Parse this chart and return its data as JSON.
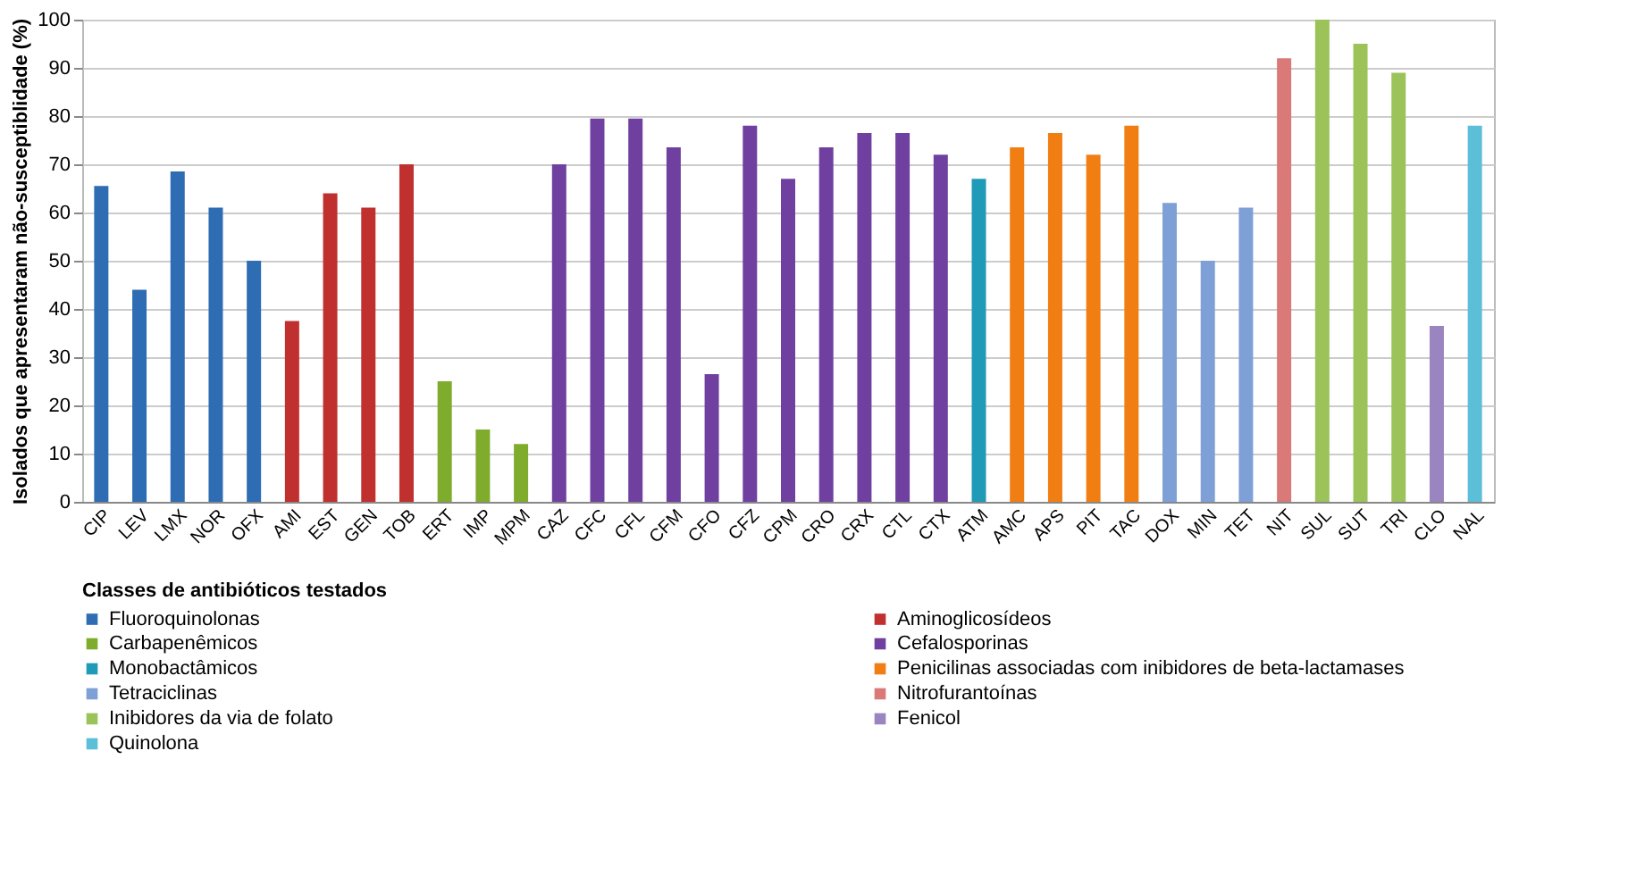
{
  "chart_data": {
    "type": "bar",
    "ylabel": "Isolados que apresentaram não-susceptiblidade (%)",
    "legend_title": "Classes de antibióticos testados",
    "categories": [
      "CIP",
      "LEV",
      "LMX",
      "NOR",
      "OFX",
      "AMI",
      "EST",
      "GEN",
      "TOB",
      "ERT",
      "IMP",
      "MPM",
      "CAZ",
      "CFC",
      "CFL",
      "CFM",
      "CFO",
      "CFZ",
      "CPM",
      "CRO",
      "CRX",
      "CTL",
      "CTX",
      "ATM",
      "AMC",
      "APS",
      "PIT",
      "TAC",
      "DOX",
      "MIN",
      "TET",
      "NIT",
      "SUL",
      "SUT",
      "TRI",
      "CLO",
      "NAL"
    ],
    "series": [
      {
        "name": "Fluoroquinolonas",
        "color": "#2e6db4",
        "values": [
          65.5,
          44,
          68.5,
          61,
          50,
          null,
          null,
          null,
          null,
          null,
          null,
          null,
          null,
          null,
          null,
          null,
          null,
          null,
          null,
          null,
          null,
          null,
          null,
          null,
          null,
          null,
          null,
          null,
          null,
          null,
          null,
          null,
          null,
          null,
          null,
          null,
          null
        ]
      },
      {
        "name": "Aminoglicosídeos",
        "color": "#c0302f",
        "values": [
          null,
          null,
          null,
          null,
          null,
          37.5,
          64,
          61,
          70,
          null,
          null,
          null,
          null,
          null,
          null,
          null,
          null,
          null,
          null,
          null,
          null,
          null,
          null,
          null,
          null,
          null,
          null,
          null,
          null,
          null,
          null,
          null,
          null,
          null,
          null,
          null,
          null
        ]
      },
      {
        "name": "Carbapenêmicos",
        "color": "#7fac2c",
        "values": [
          null,
          null,
          null,
          null,
          null,
          null,
          null,
          null,
          null,
          25,
          15,
          12,
          null,
          null,
          null,
          null,
          null,
          null,
          null,
          null,
          null,
          null,
          null,
          null,
          null,
          null,
          null,
          null,
          null,
          null,
          null,
          null,
          null,
          null,
          null,
          null,
          null
        ]
      },
      {
        "name": "Cefalosporinas",
        "color": "#7040a0",
        "values": [
          null,
          null,
          null,
          null,
          null,
          null,
          null,
          null,
          null,
          null,
          null,
          null,
          70,
          79.5,
          79.5,
          73.5,
          26.5,
          78,
          67,
          73.5,
          76.5,
          76.5,
          72,
          null,
          null,
          null,
          null,
          null,
          null,
          null,
          null,
          null,
          null,
          null,
          null,
          null,
          null
        ]
      },
      {
        "name": "Monobactâmicos",
        "color": "#1f9bb8",
        "values": [
          null,
          null,
          null,
          null,
          null,
          null,
          null,
          null,
          null,
          null,
          null,
          null,
          null,
          null,
          null,
          null,
          null,
          null,
          null,
          null,
          null,
          null,
          null,
          67,
          null,
          null,
          null,
          null,
          null,
          null,
          null,
          null,
          null,
          null,
          null,
          null,
          null
        ]
      },
      {
        "name": "Penicilinas associadas com inibidores de beta-lactamases",
        "color": "#f07e12",
        "values": [
          null,
          null,
          null,
          null,
          null,
          null,
          null,
          null,
          null,
          null,
          null,
          null,
          null,
          null,
          null,
          null,
          null,
          null,
          null,
          null,
          null,
          null,
          null,
          null,
          73.5,
          76.5,
          72,
          78,
          null,
          null,
          null,
          null,
          null,
          null,
          null,
          null,
          null
        ]
      },
      {
        "name": "Tetraciclinas",
        "color": "#7ea0d6",
        "values": [
          null,
          null,
          null,
          null,
          null,
          null,
          null,
          null,
          null,
          null,
          null,
          null,
          null,
          null,
          null,
          null,
          null,
          null,
          null,
          null,
          null,
          null,
          null,
          null,
          null,
          null,
          null,
          null,
          62,
          50,
          61,
          null,
          null,
          null,
          null,
          null,
          null
        ]
      },
      {
        "name": "Nitrofurantoínas",
        "color": "#d97a78",
        "values": [
          null,
          null,
          null,
          null,
          null,
          null,
          null,
          null,
          null,
          null,
          null,
          null,
          null,
          null,
          null,
          null,
          null,
          null,
          null,
          null,
          null,
          null,
          null,
          null,
          null,
          null,
          null,
          null,
          null,
          null,
          null,
          92,
          null,
          null,
          null,
          null,
          null
        ]
      },
      {
        "name": "Inibidores da via de folato",
        "color": "#9bc35a",
        "values": [
          null,
          null,
          null,
          null,
          null,
          null,
          null,
          null,
          null,
          null,
          null,
          null,
          null,
          null,
          null,
          null,
          null,
          null,
          null,
          null,
          null,
          null,
          null,
          null,
          null,
          null,
          null,
          null,
          null,
          null,
          null,
          null,
          100,
          95,
          89,
          null,
          null
        ]
      },
      {
        "name": "Fenicol",
        "color": "#9a85c0",
        "values": [
          null,
          null,
          null,
          null,
          null,
          null,
          null,
          null,
          null,
          null,
          null,
          null,
          null,
          null,
          null,
          null,
          null,
          null,
          null,
          null,
          null,
          null,
          null,
          null,
          null,
          null,
          null,
          null,
          null,
          null,
          null,
          null,
          null,
          null,
          null,
          36.5,
          null
        ]
      },
      {
        "name": "Quinolona",
        "color": "#5bbfd8",
        "values": [
          null,
          null,
          null,
          null,
          null,
          null,
          null,
          null,
          null,
          null,
          null,
          null,
          null,
          null,
          null,
          null,
          null,
          null,
          null,
          null,
          null,
          null,
          null,
          null,
          null,
          null,
          null,
          null,
          null,
          null,
          null,
          null,
          null,
          null,
          null,
          null,
          78
        ]
      }
    ],
    "ylim": [
      0,
      100
    ],
    "yticks": [
      0,
      10,
      20,
      30,
      40,
      50,
      60,
      70,
      80,
      90,
      100
    ],
    "grid": "y",
    "legend": "bottom"
  }
}
